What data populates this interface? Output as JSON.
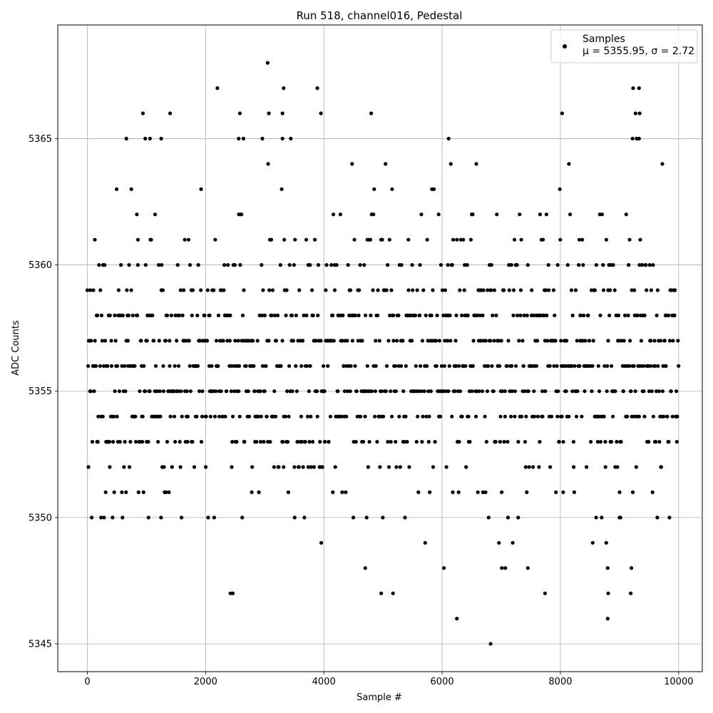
{
  "chart_data": {
    "type": "scatter",
    "title": "Run 518, channel016, Pedestal",
    "xlabel": "Sample #",
    "ylabel": "ADC Counts",
    "xlim": [
      -500,
      10400
    ],
    "ylim": [
      5343.9,
      5369.5
    ],
    "xticks": [
      0,
      2000,
      4000,
      6000,
      8000,
      10000
    ],
    "yticks": [
      5345,
      5350,
      5355,
      5360,
      5365
    ],
    "grid": true,
    "legend": {
      "placement": "top-right",
      "entries": [
        {
          "name": "Samples",
          "stat_text": "μ = 5355.95, σ = 2.72"
        }
      ]
    },
    "series": [
      {
        "name": "Samples",
        "color": "#000000",
        "n_samples": 10000,
        "mean": 5355.95,
        "sigma": 2.72,
        "outliers": [
          [
            3050,
            5368
          ],
          [
            2200,
            5367
          ],
          [
            3320,
            5367
          ],
          [
            3890,
            5367
          ],
          [
            9230,
            5367
          ],
          [
            9330,
            5367
          ],
          [
            940,
            5366
          ],
          [
            1400,
            5366
          ],
          [
            2580,
            5366
          ],
          [
            3070,
            5366
          ],
          [
            3300,
            5366
          ],
          [
            3950,
            5366
          ],
          [
            4800,
            5366
          ],
          [
            8030,
            5366
          ],
          [
            9270,
            5366
          ],
          [
            9340,
            5366
          ],
          [
            660,
            5365
          ],
          [
            980,
            5365
          ],
          [
            1060,
            5365
          ],
          [
            1250,
            5365
          ],
          [
            2560,
            5365
          ],
          [
            2640,
            5365
          ],
          [
            2960,
            5365
          ],
          [
            3300,
            5365
          ],
          [
            3440,
            5365
          ],
          [
            6110,
            5365
          ],
          [
            9220,
            5365
          ],
          [
            9290,
            5365
          ],
          [
            9330,
            5365
          ],
          [
            6820,
            5345
          ],
          [
            6250,
            5346
          ],
          [
            8800,
            5346
          ],
          [
            2420,
            5347
          ],
          [
            2460,
            5347
          ],
          [
            4970,
            5347
          ],
          [
            5170,
            5347
          ],
          [
            7740,
            5347
          ],
          [
            8810,
            5347
          ],
          [
            9190,
            5347
          ],
          [
            4700,
            5348
          ],
          [
            6030,
            5348
          ],
          [
            7010,
            5348
          ],
          [
            7070,
            5348
          ],
          [
            7450,
            5348
          ],
          [
            8800,
            5348
          ],
          [
            9200,
            5348
          ]
        ]
      }
    ]
  }
}
